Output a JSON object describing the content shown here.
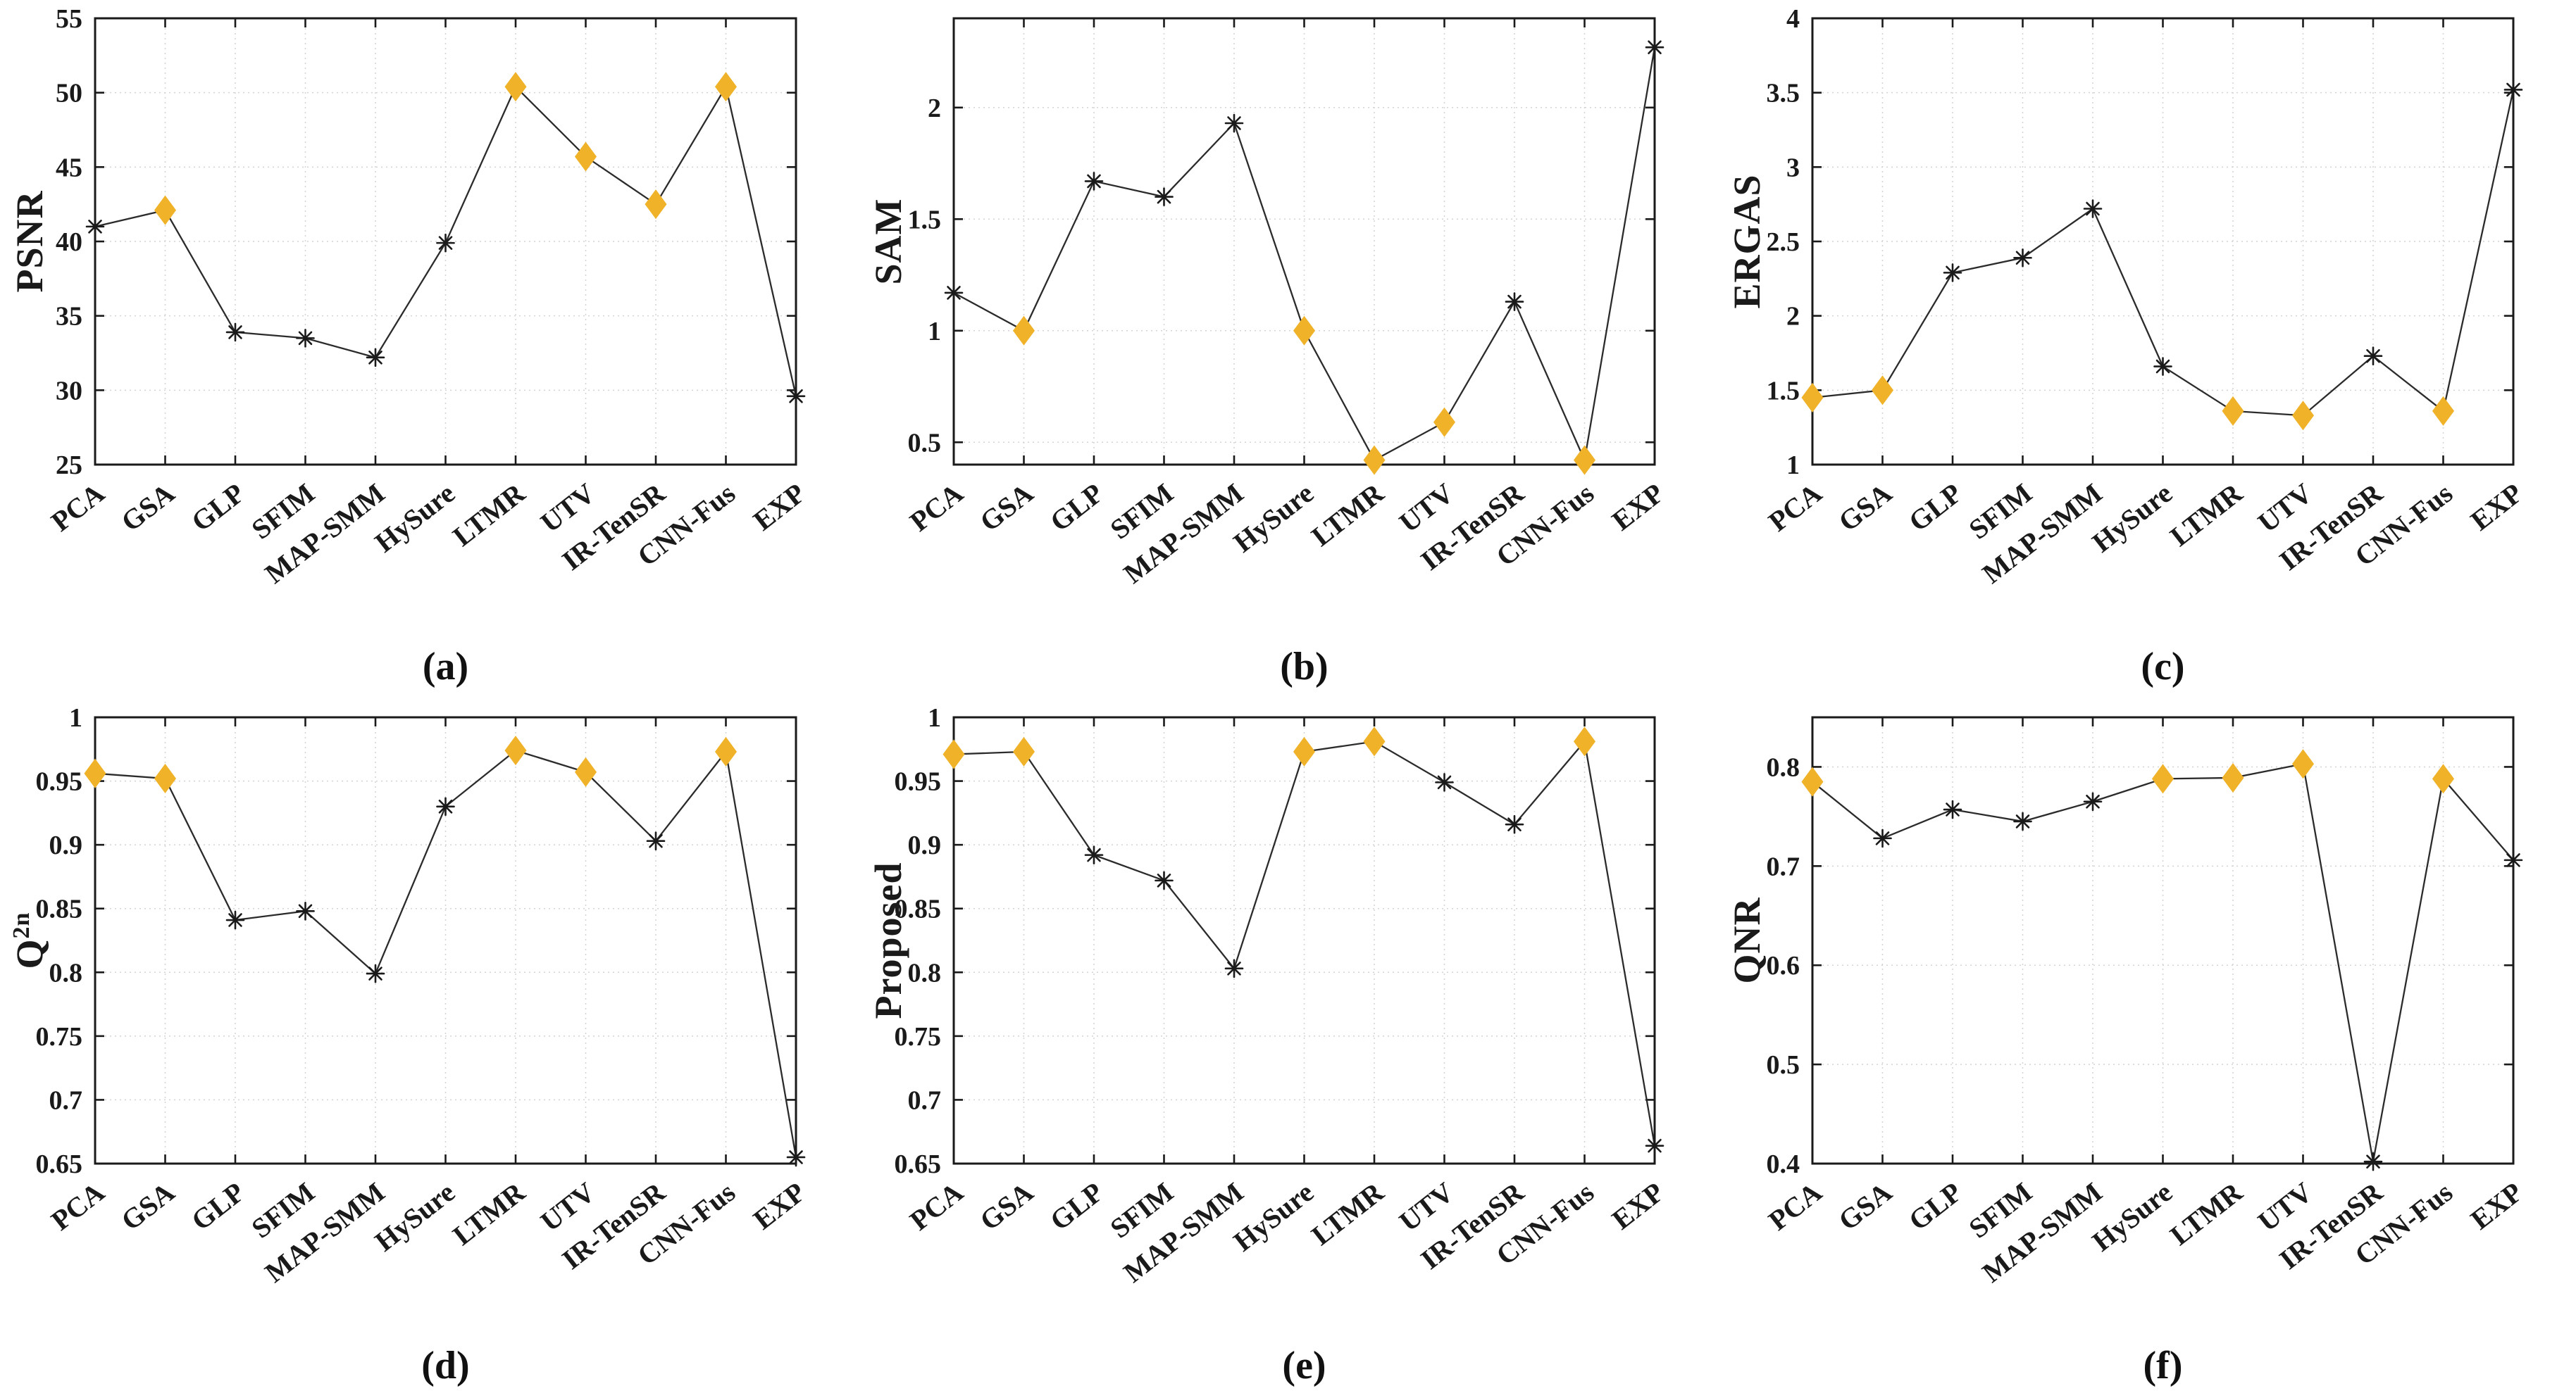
{
  "figure": {
    "background": "#ffffff",
    "colors": {
      "axis": "#1a1a1a",
      "line": "#2b2b2b",
      "grid": "#d4d4d4",
      "diamond_fill": "#EFB228",
      "text": "#1a1a1a"
    },
    "marker_shapes": [
      "star",
      "diamond"
    ],
    "layout": "2 rows x 3 columns"
  },
  "chart_data": [
    {
      "type": "line",
      "caption": "(a)",
      "ylabel": {
        "text": "PSNR",
        "sup": ""
      },
      "categories": [
        "PCA",
        "GSA",
        "GLP",
        "SFIM",
        "MAP-SMM",
        "HySure",
        "LTMR",
        "UTV",
        "IR-TenSR",
        "CNN-Fus",
        "EXP"
      ],
      "values": [
        41.0,
        42.1,
        33.9,
        33.5,
        32.2,
        39.9,
        50.4,
        45.7,
        42.5,
        50.4,
        29.6
      ],
      "markers": [
        "star",
        "diamond",
        "star",
        "star",
        "star",
        "star",
        "diamond",
        "diamond",
        "diamond",
        "diamond",
        "star"
      ],
      "ylim": [
        25,
        55
      ],
      "yticks": [
        25,
        30,
        35,
        40,
        45,
        50,
        55
      ],
      "ytick_labels": [
        "25",
        "30",
        "35",
        "40",
        "45",
        "50",
        "55"
      ],
      "grid": true
    },
    {
      "type": "line",
      "caption": "(b)",
      "ylabel": {
        "text": "SAM",
        "sup": ""
      },
      "categories": [
        "PCA",
        "GSA",
        "GLP",
        "SFIM",
        "MAP-SMM",
        "HySure",
        "LTMR",
        "UTV",
        "IR-TenSR",
        "CNN-Fus",
        "EXP"
      ],
      "values": [
        1.17,
        1.0,
        1.67,
        1.6,
        1.93,
        1.0,
        0.42,
        0.59,
        1.13,
        0.42,
        2.27
      ],
      "markers": [
        "star",
        "diamond",
        "star",
        "star",
        "star",
        "diamond",
        "diamond",
        "diamond",
        "star",
        "diamond",
        "star"
      ],
      "ylim": [
        0.4,
        2.4
      ],
      "yticks": [
        0.5,
        1,
        1.5,
        2
      ],
      "ytick_labels": [
        "0.5",
        "1",
        "1.5",
        "2"
      ],
      "grid": true
    },
    {
      "type": "line",
      "caption": "(c)",
      "ylabel": {
        "text": "ERGAS",
        "sup": ""
      },
      "categories": [
        "PCA",
        "GSA",
        "GLP",
        "SFIM",
        "MAP-SMM",
        "HySure",
        "LTMR",
        "UTV",
        "IR-TenSR",
        "CNN-Fus",
        "EXP"
      ],
      "values": [
        1.45,
        1.5,
        2.29,
        2.39,
        2.72,
        1.66,
        1.36,
        1.33,
        1.73,
        1.36,
        3.52
      ],
      "markers": [
        "diamond",
        "diamond",
        "star",
        "star",
        "star",
        "star",
        "diamond",
        "diamond",
        "star",
        "diamond",
        "star"
      ],
      "ylim": [
        1,
        4
      ],
      "yticks": [
        1,
        1.5,
        2,
        2.5,
        3,
        3.5,
        4
      ],
      "ytick_labels": [
        "1",
        "1.5",
        "2",
        "2.5",
        "3",
        "3.5",
        "4"
      ],
      "grid": true
    },
    {
      "type": "line",
      "caption": "(d)",
      "ylabel": {
        "text": "Q",
        "sup": "2n"
      },
      "categories": [
        "PCA",
        "GSA",
        "GLP",
        "SFIM",
        "MAP-SMM",
        "HySure",
        "LTMR",
        "UTV",
        "IR-TenSR",
        "CNN-Fus",
        "EXP"
      ],
      "values": [
        0.956,
        0.952,
        0.841,
        0.848,
        0.799,
        0.93,
        0.974,
        0.957,
        0.903,
        0.973,
        0.655
      ],
      "markers": [
        "diamond",
        "diamond",
        "star",
        "star",
        "star",
        "star",
        "diamond",
        "diamond",
        "star",
        "diamond",
        "star"
      ],
      "ylim": [
        0.65,
        1
      ],
      "yticks": [
        0.65,
        0.7,
        0.75,
        0.8,
        0.85,
        0.9,
        0.95,
        1
      ],
      "ytick_labels": [
        "0.65",
        "0.7",
        "0.75",
        "0.8",
        "0.85",
        "0.9",
        "0.95",
        "1"
      ],
      "grid": true
    },
    {
      "type": "line",
      "caption": "(e)",
      "ylabel": {
        "text": "Proposed",
        "sup": ""
      },
      "categories": [
        "PCA",
        "GSA",
        "GLP",
        "SFIM",
        "MAP-SMM",
        "HySure",
        "LTMR",
        "UTV",
        "IR-TenSR",
        "CNN-Fus",
        "EXP"
      ],
      "values": [
        0.971,
        0.973,
        0.892,
        0.872,
        0.803,
        0.973,
        0.981,
        0.949,
        0.916,
        0.981,
        0.664
      ],
      "markers": [
        "diamond",
        "diamond",
        "star",
        "star",
        "star",
        "diamond",
        "diamond",
        "star",
        "star",
        "diamond",
        "star"
      ],
      "ylim": [
        0.65,
        1
      ],
      "yticks": [
        0.65,
        0.7,
        0.75,
        0.8,
        0.85,
        0.9,
        0.95,
        1
      ],
      "ytick_labels": [
        "0.65",
        "0.7",
        "0.75",
        "0.8",
        "0.85",
        "0.9",
        "0.95",
        "1"
      ],
      "grid": true
    },
    {
      "type": "line",
      "caption": "(f)",
      "ylabel": {
        "text": "QNR",
        "sup": ""
      },
      "categories": [
        "PCA",
        "GSA",
        "GLP",
        "SFIM",
        "MAP-SMM",
        "HySure",
        "LTMR",
        "UTV",
        "IR-TenSR",
        "CNN-Fus",
        "EXP"
      ],
      "values": [
        0.785,
        0.728,
        0.757,
        0.745,
        0.765,
        0.788,
        0.789,
        0.803,
        0.402,
        0.788,
        0.706
      ],
      "markers": [
        "diamond",
        "star",
        "star",
        "star",
        "star",
        "diamond",
        "diamond",
        "diamond",
        "star",
        "diamond",
        "star"
      ],
      "ylim": [
        0.4,
        0.85
      ],
      "yticks": [
        0.4,
        0.5,
        0.6,
        0.7,
        0.8
      ],
      "ytick_labels": [
        "0.4",
        "0.5",
        "0.6",
        "0.7",
        "0.8"
      ],
      "grid": true
    }
  ]
}
